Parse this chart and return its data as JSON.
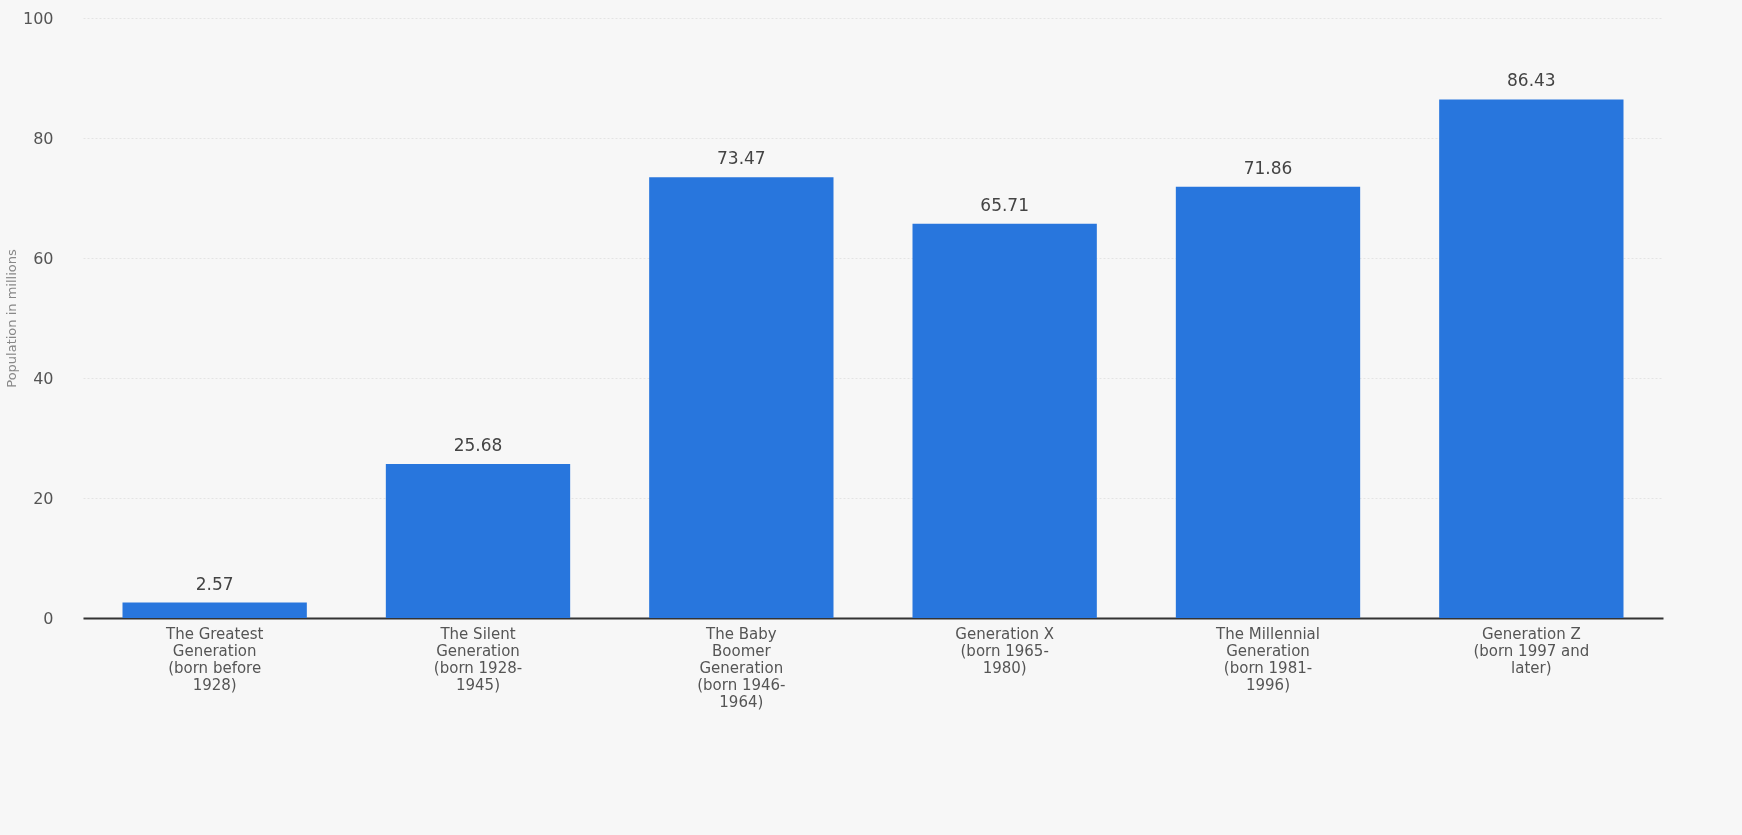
{
  "chart_data": {
    "type": "bar",
    "ylabel": "Population in millions",
    "categories": [
      "The Greatest\nGeneration\n(born before\n1928)",
      "The Silent\nGeneration\n(born 1928-\n1945)",
      "The Baby\nBoomer\nGeneration\n(born 1946-\n1964)",
      "Generation X\n(born 1965-\n1980)",
      "The Millennial\nGeneration\n(born 1981-\n1996)",
      "Generation Z\n(born 1997 and\nlater)"
    ],
    "values": [
      2.57,
      25.68,
      73.47,
      65.71,
      71.86,
      86.43
    ],
    "color": "#2876dd",
    "ylim": [
      0,
      100
    ],
    "yticks": [
      0,
      20,
      40,
      60,
      80,
      100
    ],
    "grid": "y",
    "data_labels": true
  }
}
